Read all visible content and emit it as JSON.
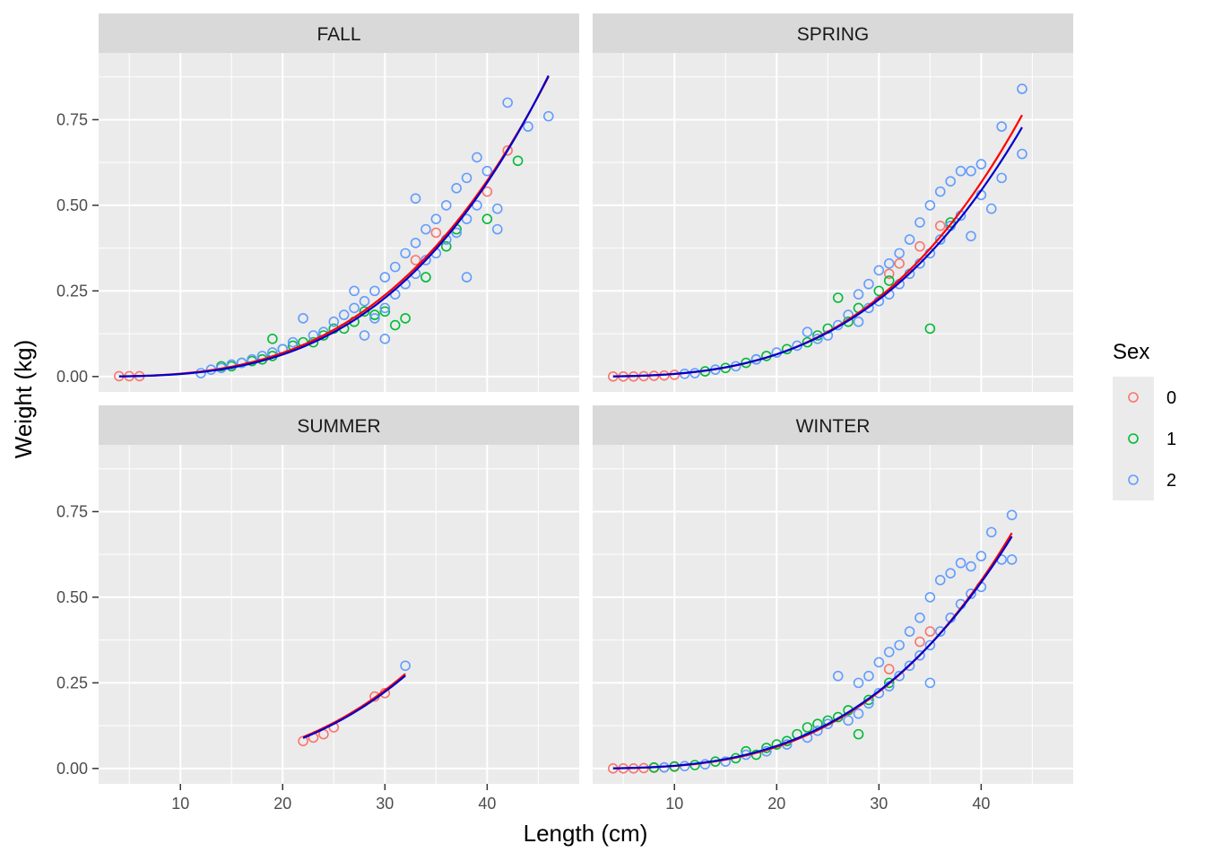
{
  "chart_data": {
    "type": "scatter",
    "xlabel": "Length (cm)",
    "ylabel": "Weight (kg)",
    "xlim": [
      2,
      49
    ],
    "ylim": [
      -0.045,
      0.945
    ],
    "x_ticks": [
      10,
      20,
      30,
      40
    ],
    "y_ticks": [
      0.0,
      0.25,
      0.5,
      0.75
    ],
    "x_tick_labels": [
      "10",
      "20",
      "30",
      "40"
    ],
    "y_tick_labels": [
      "0.00",
      "0.25",
      "0.50",
      "0.75"
    ],
    "grid": true,
    "legend": {
      "title": "Sex",
      "position": "right",
      "entries": [
        {
          "label": "0",
          "color": "#F8766D"
        },
        {
          "label": "1",
          "color": "#00BA38"
        },
        {
          "label": "2",
          "color": "#619CFF"
        }
      ]
    },
    "fit_line_colors": {
      "0": "#FF0000",
      "2": "#0000CC"
    },
    "panels": [
      {
        "name": "FALL",
        "points": {
          "0": [
            [
              4,
              0.001
            ],
            [
              5,
              0.001
            ],
            [
              6,
              0.001
            ],
            [
              40,
              0.54
            ],
            [
              42,
              0.66
            ],
            [
              35,
              0.42
            ],
            [
              33,
              0.34
            ]
          ],
          "1": [
            [
              14,
              0.03
            ],
            [
              15,
              0.03
            ],
            [
              16,
              0.04
            ],
            [
              17,
              0.045
            ],
            [
              18,
              0.05
            ],
            [
              19,
              0.06
            ],
            [
              19,
              0.11
            ],
            [
              20,
              0.08
            ],
            [
              21,
              0.09
            ],
            [
              22,
              0.1
            ],
            [
              23,
              0.1
            ],
            [
              24,
              0.12
            ],
            [
              25,
              0.14
            ],
            [
              26,
              0.14
            ],
            [
              27,
              0.16
            ],
            [
              28,
              0.19
            ],
            [
              29,
              0.18
            ],
            [
              30,
              0.19
            ],
            [
              31,
              0.15
            ],
            [
              32,
              0.17
            ],
            [
              34,
              0.29
            ],
            [
              36,
              0.38
            ],
            [
              37,
              0.43
            ],
            [
              40,
              0.46
            ],
            [
              43,
              0.63
            ]
          ],
          "2": [
            [
              12,
              0.01
            ],
            [
              13,
              0.02
            ],
            [
              14,
              0.025
            ],
            [
              15,
              0.035
            ],
            [
              16,
              0.04
            ],
            [
              17,
              0.05
            ],
            [
              18,
              0.06
            ],
            [
              19,
              0.07
            ],
            [
              20,
              0.08
            ],
            [
              21,
              0.1
            ],
            [
              22,
              0.17
            ],
            [
              23,
              0.12
            ],
            [
              24,
              0.13
            ],
            [
              25,
              0.16
            ],
            [
              26,
              0.18
            ],
            [
              27,
              0.2
            ],
            [
              27,
              0.25
            ],
            [
              28,
              0.22
            ],
            [
              28,
              0.12
            ],
            [
              29,
              0.25
            ],
            [
              29,
              0.17
            ],
            [
              30,
              0.29
            ],
            [
              30,
              0.2
            ],
            [
              30,
              0.11
            ],
            [
              31,
              0.32
            ],
            [
              31,
              0.24
            ],
            [
              32,
              0.36
            ],
            [
              32,
              0.27
            ],
            [
              33,
              0.39
            ],
            [
              33,
              0.3
            ],
            [
              33,
              0.52
            ],
            [
              34,
              0.43
            ],
            [
              34,
              0.34
            ],
            [
              35,
              0.46
            ],
            [
              35,
              0.36
            ],
            [
              36,
              0.5
            ],
            [
              36,
              0.4
            ],
            [
              37,
              0.55
            ],
            [
              37,
              0.42
            ],
            [
              38,
              0.58
            ],
            [
              38,
              0.46
            ],
            [
              38,
              0.29
            ],
            [
              39,
              0.64
            ],
            [
              39,
              0.5
            ],
            [
              40,
              0.6
            ],
            [
              41,
              0.49
            ],
            [
              41,
              0.43
            ],
            [
              42,
              0.8
            ],
            [
              44,
              0.73
            ],
            [
              46,
              0.76
            ]
          ]
        },
        "fits": {
          "0": {
            "a": 7.43e-06,
            "b": 3.05,
            "x_range": [
              4,
              46
            ]
          },
          "2": {
            "a": 5.28e-06,
            "b": 3.14,
            "x_range": [
              4,
              46
            ]
          }
        }
      },
      {
        "name": "SPRING",
        "points": {
          "0": [
            [
              4,
              0.0
            ],
            [
              5,
              0.0
            ],
            [
              6,
              0.0
            ],
            [
              7,
              0.001
            ],
            [
              8,
              0.002
            ],
            [
              9,
              0.003
            ],
            [
              10,
              0.005
            ],
            [
              31,
              0.3
            ],
            [
              32,
              0.33
            ],
            [
              34,
              0.38
            ],
            [
              36,
              0.44
            ]
          ],
          "1": [
            [
              13,
              0.015
            ],
            [
              15,
              0.025
            ],
            [
              17,
              0.04
            ],
            [
              18,
              0.05
            ],
            [
              19,
              0.06
            ],
            [
              21,
              0.08
            ],
            [
              23,
              0.1
            ],
            [
              24,
              0.12
            ],
            [
              25,
              0.14
            ],
            [
              26,
              0.23
            ],
            [
              27,
              0.16
            ],
            [
              28,
              0.2
            ],
            [
              30,
              0.25
            ],
            [
              31,
              0.28
            ],
            [
              35,
              0.14
            ],
            [
              37,
              0.45
            ]
          ],
          "2": [
            [
              11,
              0.008
            ],
            [
              12,
              0.01
            ],
            [
              14,
              0.02
            ],
            [
              16,
              0.03
            ],
            [
              18,
              0.05
            ],
            [
              20,
              0.07
            ],
            [
              22,
              0.09
            ],
            [
              23,
              0.13
            ],
            [
              24,
              0.11
            ],
            [
              25,
              0.12
            ],
            [
              26,
              0.15
            ],
            [
              27,
              0.18
            ],
            [
              28,
              0.16
            ],
            [
              28,
              0.24
            ],
            [
              29,
              0.2
            ],
            [
              29,
              0.27
            ],
            [
              30,
              0.22
            ],
            [
              30,
              0.31
            ],
            [
              31,
              0.24
            ],
            [
              31,
              0.33
            ],
            [
              32,
              0.27
            ],
            [
              32,
              0.36
            ],
            [
              33,
              0.3
            ],
            [
              33,
              0.4
            ],
            [
              34,
              0.33
            ],
            [
              34,
              0.45
            ],
            [
              35,
              0.36
            ],
            [
              35,
              0.5
            ],
            [
              36,
              0.4
            ],
            [
              36,
              0.54
            ],
            [
              37,
              0.44
            ],
            [
              37,
              0.57
            ],
            [
              38,
              0.47
            ],
            [
              38,
              0.6
            ],
            [
              39,
              0.41
            ],
            [
              39,
              0.6
            ],
            [
              40,
              0.53
            ],
            [
              40,
              0.62
            ],
            [
              41,
              0.49
            ],
            [
              42,
              0.73
            ],
            [
              42,
              0.58
            ],
            [
              44,
              0.84
            ],
            [
              44,
              0.65
            ]
          ]
        },
        "fits": {
          "0": {
            "a": 5.585e-06,
            "b": 3.125,
            "x_range": [
              4,
              44
            ]
          },
          "2": {
            "a": 6.68e-06,
            "b": 3.065,
            "x_range": [
              4,
              44
            ]
          }
        }
      },
      {
        "name": "SUMMER",
        "points": {
          "0": [
            [
              22,
              0.08
            ],
            [
              23,
              0.09
            ],
            [
              24,
              0.1
            ],
            [
              25,
              0.12
            ],
            [
              29,
              0.21
            ],
            [
              30,
              0.22
            ]
          ],
          "1": [],
          "2": [
            [
              32,
              0.3
            ]
          ]
        },
        "fits": {
          "0": {
            "a": 1.02e-05,
            "b": 2.945,
            "x_range": [
              22,
              32
            ]
          },
          "2": {
            "a": 9.18e-06,
            "b": 2.97,
            "x_range": [
              22,
              32
            ]
          }
        }
      },
      {
        "name": "WINTER",
        "points": {
          "0": [
            [
              4,
              0.0
            ],
            [
              5,
              0.0
            ],
            [
              6,
              0.0
            ],
            [
              7,
              0.001
            ],
            [
              8,
              0.002
            ],
            [
              9,
              0.003
            ],
            [
              10,
              0.005
            ],
            [
              31,
              0.29
            ],
            [
              34,
              0.37
            ],
            [
              35,
              0.4
            ]
          ],
          "1": [
            [
              8,
              0.003
            ],
            [
              10,
              0.006
            ],
            [
              12,
              0.01
            ],
            [
              14,
              0.02
            ],
            [
              16,
              0.03
            ],
            [
              17,
              0.05
            ],
            [
              18,
              0.04
            ],
            [
              19,
              0.06
            ],
            [
              20,
              0.07
            ],
            [
              21,
              0.08
            ],
            [
              22,
              0.1
            ],
            [
              23,
              0.12
            ],
            [
              24,
              0.13
            ],
            [
              25,
              0.14
            ],
            [
              26,
              0.15
            ],
            [
              27,
              0.17
            ],
            [
              28,
              0.1
            ],
            [
              29,
              0.2
            ],
            [
              31,
              0.25
            ]
          ],
          "2": [
            [
              9,
              0.003
            ],
            [
              11,
              0.007
            ],
            [
              13,
              0.012
            ],
            [
              15,
              0.02
            ],
            [
              17,
              0.04
            ],
            [
              19,
              0.05
            ],
            [
              21,
              0.07
            ],
            [
              23,
              0.09
            ],
            [
              24,
              0.11
            ],
            [
              25,
              0.13
            ],
            [
              26,
              0.27
            ],
            [
              27,
              0.14
            ],
            [
              28,
              0.16
            ],
            [
              28,
              0.25
            ],
            [
              29,
              0.19
            ],
            [
              29,
              0.27
            ],
            [
              30,
              0.22
            ],
            [
              30,
              0.31
            ],
            [
              31,
              0.24
            ],
            [
              31,
              0.34
            ],
            [
              32,
              0.27
            ],
            [
              32,
              0.36
            ],
            [
              33,
              0.3
            ],
            [
              33,
              0.4
            ],
            [
              34,
              0.33
            ],
            [
              34,
              0.44
            ],
            [
              35,
              0.36
            ],
            [
              35,
              0.25
            ],
            [
              35,
              0.5
            ],
            [
              36,
              0.4
            ],
            [
              36,
              0.55
            ],
            [
              37,
              0.44
            ],
            [
              37,
              0.57
            ],
            [
              38,
              0.48
            ],
            [
              38,
              0.6
            ],
            [
              39,
              0.51
            ],
            [
              39,
              0.59
            ],
            [
              40,
              0.53
            ],
            [
              40,
              0.62
            ],
            [
              41,
              0.69
            ],
            [
              42,
              0.61
            ],
            [
              43,
              0.74
            ],
            [
              43,
              0.61
            ]
          ]
        },
        "fits": {
          "0": {
            "a": 5.61e-06,
            "b": 3.115,
            "x_range": [
              4,
              43
            ]
          },
          "2": {
            "a": 7.14e-06,
            "b": 3.047,
            "x_range": [
              4,
              43
            ]
          }
        }
      }
    ]
  }
}
